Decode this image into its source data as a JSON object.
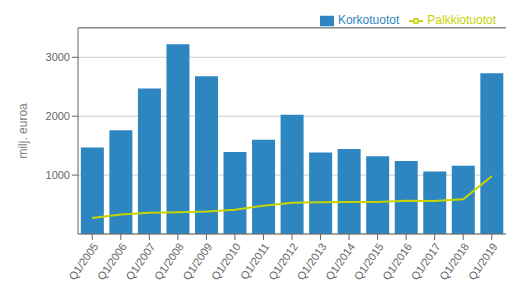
{
  "chart_data": {
    "type": "bar",
    "ylabel": "milj. euroa",
    "categories": [
      "Q1/2005",
      "Q1/2006",
      "Q1/2007",
      "Q1/2008",
      "Q1/2009",
      "Q1/2010",
      "Q1/2011",
      "Q1/2012",
      "Q1/2013",
      "Q1/2014",
      "Q1/2015",
      "Q1/2016",
      "Q1/2017",
      "Q1/2018",
      "Q1/2019"
    ],
    "series": [
      {
        "name": "Korkotuotot",
        "type": "bar",
        "color": "#2e86c1",
        "values": [
          1470,
          1760,
          2470,
          3220,
          2680,
          1390,
          1600,
          2025,
          1385,
          1445,
          1320,
          1240,
          1060,
          1160,
          2730
        ]
      },
      {
        "name": "Palkkiotuotot",
        "type": "line",
        "color": "#c8d400",
        "values": [
          270,
          330,
          360,
          370,
          380,
          410,
          480,
          530,
          540,
          545,
          545,
          565,
          560,
          590,
          980
        ]
      }
    ],
    "ylim": [
      0,
      3500
    ],
    "yticks": [
      1000,
      2000,
      3000
    ],
    "grid": true,
    "legend": "upper right"
  }
}
